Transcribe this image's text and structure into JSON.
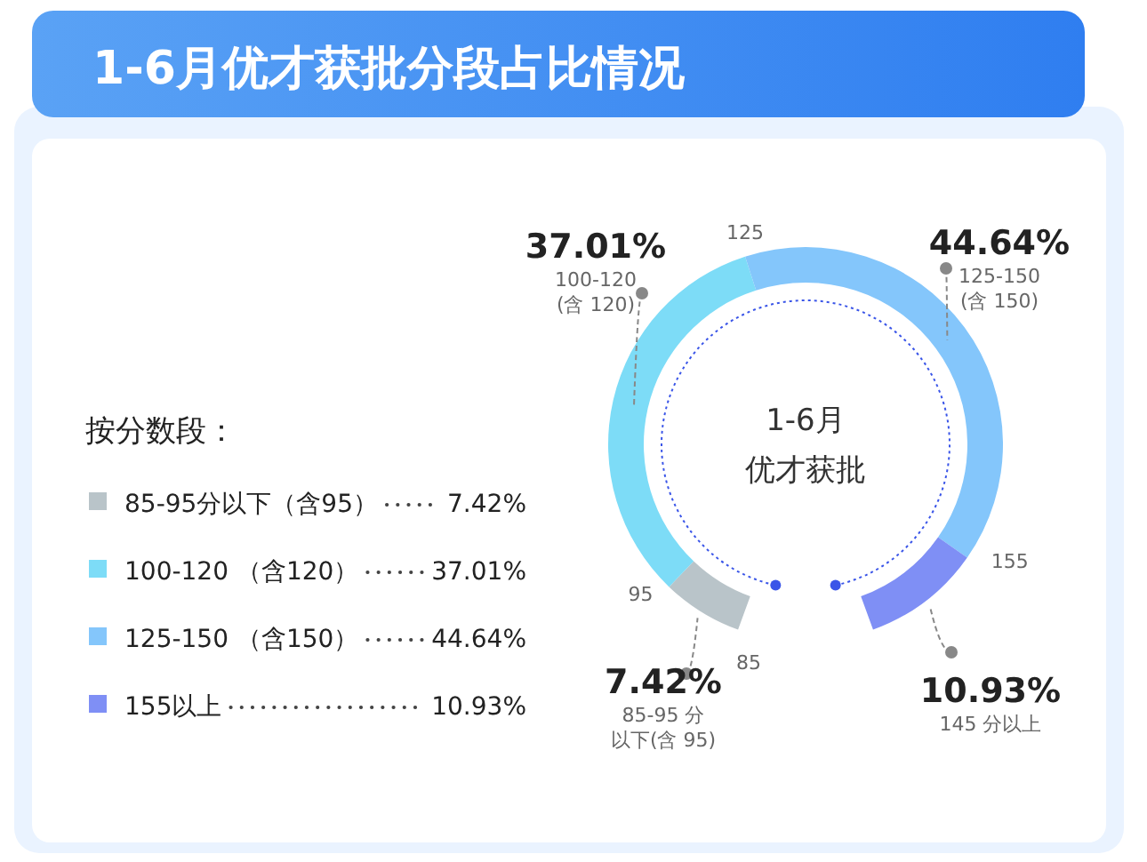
{
  "chart_data": {
    "type": "donut",
    "title": "1-6月优才获批分段占比情况",
    "legend_title": "按分数段：",
    "legend": "left",
    "categories": [
      "85-95分以下（含95）",
      "100-120 （含120）",
      "125-150 （含150）",
      "155以上"
    ],
    "values": [
      7.42,
      37.01,
      44.64,
      10.93
    ],
    "value_labels": [
      "7.42%",
      "37.01%",
      "44.64%",
      "10.93%"
    ],
    "colors": [
      "#b9c4c9",
      "#7ddcf7",
      "#84c6fb",
      "#7f8ff5"
    ],
    "annotations": [
      "1-6月",
      "优才获批",
      "85-95 分",
      "以下(含 95)",
      "100-120",
      "(含 120)",
      "125-150",
      "(含 150)",
      "145 分以上",
      "85",
      "95",
      "125",
      "155"
    ]
  }
}
